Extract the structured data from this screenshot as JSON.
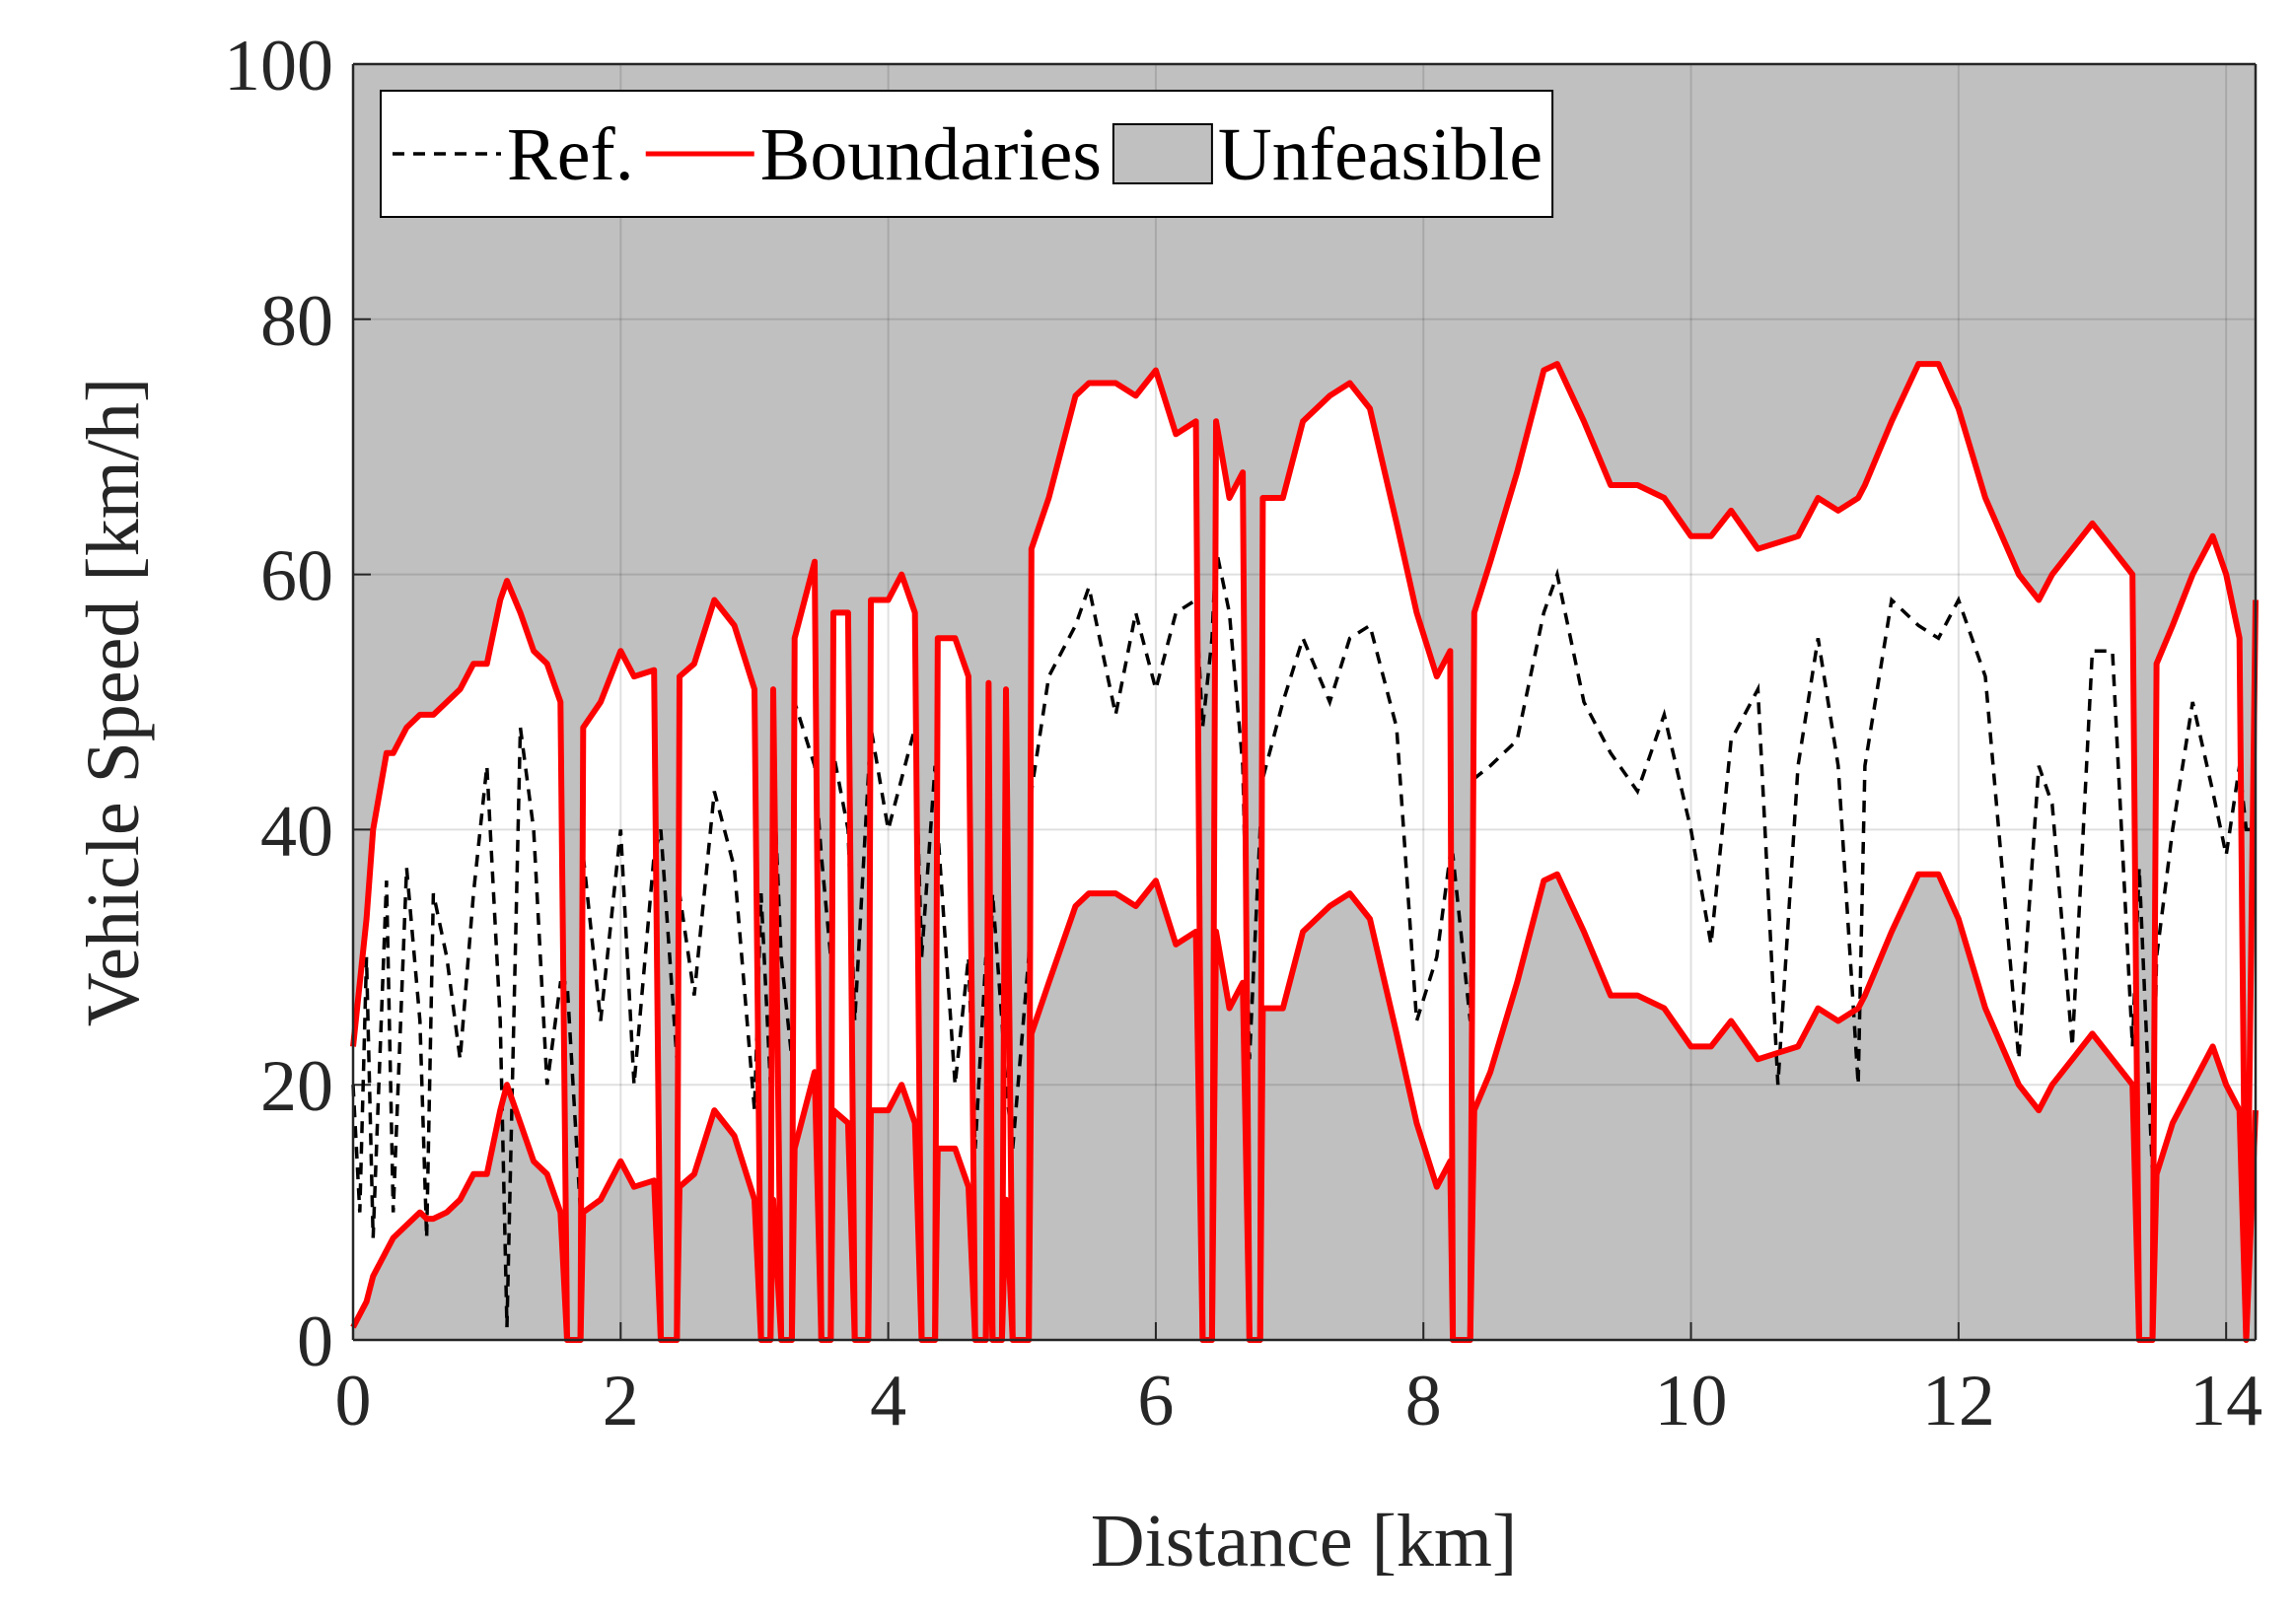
{
  "chart_data": {
    "type": "line",
    "x_label": "Distance [km]",
    "y_label": "Vehicle Speed [km/h]",
    "xlim": [
      0,
      14.22
    ],
    "ylim": [
      0,
      100
    ],
    "xticks": [
      0,
      2,
      4,
      6,
      8,
      10,
      12,
      14
    ],
    "yticks": [
      0,
      20,
      40,
      60,
      80,
      100
    ],
    "grid": true,
    "x": [
      0.0,
      0.05,
      0.1,
      0.15,
      0.25,
      0.3,
      0.4,
      0.5,
      0.55,
      0.6,
      0.7,
      0.8,
      0.9,
      1.0,
      1.1,
      1.15,
      1.25,
      1.35,
      1.45,
      1.55,
      1.6,
      1.7,
      1.72,
      1.85,
      2.0,
      2.1,
      2.25,
      2.3,
      2.42,
      2.44,
      2.55,
      2.7,
      2.85,
      3.0,
      3.05,
      3.12,
      3.14,
      3.2,
      3.28,
      3.3,
      3.45,
      3.5,
      3.57,
      3.59,
      3.7,
      3.75,
      3.85,
      3.87,
      4.0,
      4.1,
      4.2,
      4.25,
      4.35,
      4.37,
      4.5,
      4.6,
      4.65,
      4.73,
      4.75,
      4.78,
      4.85,
      4.88,
      4.93,
      5.05,
      5.07,
      5.2,
      5.4,
      5.5,
      5.7,
      5.85,
      6.0,
      6.15,
      6.3,
      6.35,
      6.42,
      6.45,
      6.55,
      6.65,
      6.7,
      6.78,
      6.8,
      6.95,
      7.1,
      7.3,
      7.45,
      7.6,
      7.8,
      7.95,
      8.1,
      8.2,
      8.22,
      8.35,
      8.38,
      8.5,
      8.7,
      8.9,
      9.0,
      9.2,
      9.4,
      9.6,
      9.8,
      10.0,
      10.15,
      10.3,
      10.5,
      10.65,
      10.8,
      10.95,
      11.1,
      11.25,
      11.3,
      11.5,
      11.7,
      11.85,
      12.0,
      12.2,
      12.45,
      12.6,
      12.7,
      12.85,
      13.0,
      13.15,
      13.3,
      13.35,
      13.45,
      13.48,
      13.6,
      13.75,
      13.9,
      14.0,
      14.1,
      14.15,
      14.22
    ],
    "series": [
      {
        "name": "Ref.",
        "color": "#000000",
        "dashed": true,
        "values": [
          20,
          10,
          30,
          8,
          36,
          10,
          37,
          25,
          8,
          35,
          30,
          22,
          35,
          45,
          25,
          1,
          48,
          40,
          20,
          28,
          28,
          10,
          38,
          25,
          40,
          20,
          38,
          40,
          22,
          35,
          27,
          43,
          37,
          18,
          35,
          20,
          45,
          30,
          22,
          50,
          45,
          38,
          30,
          46,
          40,
          25,
          44,
          48,
          40,
          44,
          48,
          30,
          45,
          40,
          20,
          30,
          15,
          30,
          25,
          35,
          25,
          20,
          15,
          30,
          43,
          52,
          56,
          59,
          49,
          57,
          51,
          57,
          58,
          48,
          55,
          62,
          57,
          45,
          22,
          40,
          44,
          50,
          55,
          50,
          55,
          56,
          48,
          25,
          30,
          38,
          38,
          25,
          44,
          45,
          47,
          57,
          60,
          50,
          46,
          43,
          49,
          40,
          31,
          47,
          51,
          20,
          45,
          55,
          45,
          20,
          45,
          58,
          56,
          55,
          58,
          52,
          22,
          45,
          42,
          23,
          54,
          54,
          23,
          37,
          13,
          30,
          40,
          50,
          43,
          38,
          45,
          40,
          40
        ]
      },
      {
        "name": "Boundaries",
        "color": "#ff0000",
        "dashed": false,
        "upper": [
          23,
          28,
          33,
          40,
          46,
          46,
          48,
          49,
          49,
          49,
          50,
          51,
          53,
          53,
          58,
          59.5,
          57,
          54,
          53,
          50,
          0,
          0,
          48,
          50,
          54,
          52,
          52.5,
          0,
          0,
          52,
          53,
          58,
          56,
          51,
          0,
          0,
          51,
          0,
          0,
          55,
          61,
          0,
          0,
          57,
          57,
          0,
          0,
          58,
          58,
          60,
          57,
          0,
          0,
          55,
          55,
          52,
          0,
          0,
          51.5,
          0,
          0,
          51,
          0,
          0,
          62,
          66,
          74,
          75,
          75,
          74,
          76,
          71,
          72,
          0,
          0,
          72,
          66,
          68,
          0,
          0,
          66,
          66,
          72,
          74,
          75,
          73,
          64,
          57,
          52,
          54,
          0,
          0,
          57,
          61,
          68,
          76,
          76.5,
          72,
          67,
          67,
          66,
          63,
          63,
          65,
          62,
          62.5,
          63,
          66,
          65,
          66,
          67,
          72,
          76.5,
          76.5,
          73,
          66,
          60,
          58,
          60,
          62,
          64,
          62,
          60,
          0,
          0,
          53,
          56,
          60,
          63,
          60,
          55,
          0,
          58
        ],
        "lower": [
          1,
          2,
          3,
          5,
          7,
          8,
          9,
          10,
          9.5,
          9.5,
          10,
          11,
          13,
          13,
          18,
          20,
          17,
          14,
          13,
          10,
          0,
          0,
          10,
          11,
          14,
          12,
          12.5,
          0,
          0,
          12,
          13,
          18,
          16,
          11,
          0,
          0,
          11,
          0,
          0,
          15,
          21,
          0,
          0,
          18,
          17,
          0,
          0,
          18,
          18,
          20,
          17,
          0,
          0,
          15,
          15,
          12,
          0,
          0,
          11.5,
          0,
          0,
          11,
          0,
          0,
          24,
          28,
          34,
          35,
          35,
          34,
          36,
          31,
          32,
          0,
          0,
          32,
          26,
          28,
          0,
          0,
          26,
          26,
          32,
          34,
          35,
          33,
          24,
          17,
          12,
          14,
          0,
          0,
          18,
          21,
          28,
          36,
          36.5,
          32,
          27,
          27,
          26,
          23,
          23,
          25,
          22,
          22.5,
          23,
          26,
          25,
          26,
          27,
          32,
          36.5,
          36.5,
          33,
          26,
          20,
          18,
          20,
          22,
          24,
          22,
          20,
          0,
          0,
          13,
          17,
          20,
          23,
          20,
          18,
          0,
          18
        ]
      }
    ],
    "unfeasible": {
      "name": "Unfeasible",
      "color": "#c0c0c0"
    }
  }
}
